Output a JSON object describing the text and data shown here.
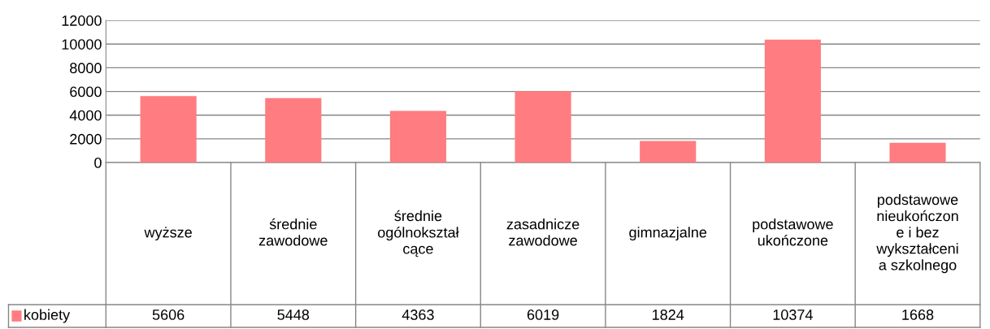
{
  "chart_data": {
    "type": "bar",
    "categories": [
      "wyższe",
      "średnie\nzawodowe",
      "średnie\nogólnokształ\ncące",
      "zasadnicze\nzawodowe",
      "gimnazjalne",
      "podstawowe\nukończone",
      "podstawowe\nnieukończon\ne i bez\nwykształceni\na szkolnego"
    ],
    "series": [
      {
        "name": "kobiety",
        "color": "#ff7c80",
        "values": [
          5606,
          5448,
          4363,
          6019,
          1824,
          10374,
          1668
        ]
      }
    ],
    "ylim": [
      0,
      12000
    ],
    "yticks": [
      0,
      2000,
      4000,
      6000,
      8000,
      10000,
      12000
    ],
    "grid": "y",
    "legend": "bottom",
    "data_labels": true
  }
}
